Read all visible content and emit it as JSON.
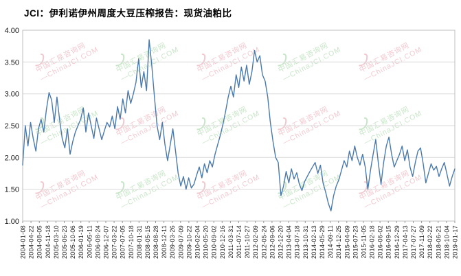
{
  "page": {
    "background": "#ffffff"
  },
  "title": "JCI：伊利诺伊州周度大豆压榨报告：现货油粕比",
  "watermark": {
    "line1": "中国汇易咨询网",
    "line2": "—ChinaJCI.COM",
    "pink_color": "#e9a4b0",
    "green_color": "#a3d4a3"
  },
  "chart_data": {
    "type": "line",
    "title": "JCI：伊利诺伊州周度大豆压榨报告：现货油粕比",
    "series_name": "现货油粕比",
    "line_color": "#4a79ad",
    "ylim": [
      1.0,
      4.0
    ],
    "y_ticks": [
      4.0,
      3.5,
      3.0,
      2.5,
      2.0,
      1.5,
      1.0
    ],
    "grid": "horizontal",
    "legend": "none",
    "x_tick_labels": [
      "2004-01-08",
      "2004-04-22",
      "2004-08-05",
      "2004-11-18",
      "2005-03-10",
      "2005-06-23",
      "2005-10-06",
      "2006-01-19",
      "2006-05-11",
      "2006-08-24",
      "2006-12-07",
      "2007-03-22",
      "2007-07-05",
      "2007-10-18",
      "2008-01-31",
      "2008-05-15",
      "2008-08-28",
      "2008-12-11",
      "2009-03-26",
      "2009-07-09",
      "2009-10-22",
      "2010-02-04",
      "2010-05-20",
      "2010-09-02",
      "2010-12-16",
      "2011-03-31",
      "2011-07-14",
      "2011-10-27",
      "2012-02-09",
      "2012-05-24",
      "2012-09-06",
      "2012-12-20",
      "2013-04-04",
      "2013-07-18",
      "2013-10-31",
      "2014-02-13",
      "2014-05-29",
      "2014-09-11",
      "2014-12-25",
      "2015-04-09",
      "2015-07-23",
      "2015-11-05",
      "2016-02-18",
      "2016-06-02",
      "2016-09-15",
      "2016-12-29",
      "2017-04-13",
      "2017-07-27",
      "2017-11-09",
      "2018-02-22",
      "2018-06-21",
      "2018-10-04",
      "2019-01-17"
    ],
    "values": [
      1.88,
      2.5,
      2.18,
      2.55,
      2.3,
      2.1,
      2.45,
      2.6,
      2.4,
      2.75,
      3.02,
      2.9,
      2.55,
      2.95,
      2.6,
      2.3,
      2.15,
      2.45,
      2.05,
      2.25,
      2.4,
      2.5,
      2.6,
      2.78,
      2.4,
      2.7,
      2.5,
      2.3,
      2.62,
      2.45,
      2.28,
      2.42,
      2.55,
      2.48,
      2.65,
      2.45,
      2.8,
      2.6,
      2.92,
      2.7,
      3.05,
      2.85,
      3.0,
      3.18,
      3.55,
      3.1,
      3.35,
      3.05,
      3.85,
      3.45,
      2.95,
      2.5,
      2.28,
      2.55,
      2.2,
      1.95,
      2.2,
      2.45,
      2.1,
      1.75,
      1.55,
      1.7,
      1.5,
      1.68,
      1.52,
      1.58,
      1.72,
      1.85,
      1.68,
      1.9,
      1.76,
      1.95,
      1.85,
      2.05,
      2.2,
      2.35,
      2.52,
      2.72,
      2.95,
      3.12,
      2.95,
      3.3,
      3.1,
      3.42,
      3.2,
      3.45,
      3.15,
      3.35,
      3.68,
      3.5,
      3.6,
      3.3,
      3.2,
      2.95,
      2.55,
      2.25,
      2.0,
      1.92,
      1.4,
      1.55,
      1.78,
      1.6,
      1.82,
      1.66,
      1.76,
      1.58,
      1.48,
      1.62,
      1.7,
      1.78,
      1.85,
      1.92,
      1.75,
      1.88,
      1.6,
      1.45,
      1.28,
      1.16,
      1.4,
      1.55,
      1.65,
      1.8,
      1.95,
      1.85,
      2.1,
      1.95,
      2.18,
      2.0,
      1.88,
      2.05,
      1.85,
      1.5,
      1.8,
      2.05,
      2.28,
      1.9,
      1.58,
      1.92,
      2.18,
      2.32,
      2.05,
      1.85,
      1.95,
      2.05,
      2.18,
      1.95,
      2.12,
      1.85,
      1.7,
      1.92,
      2.1,
      2.15,
      1.9,
      1.6,
      1.75,
      1.9,
      1.8,
      1.86,
      1.7,
      1.82,
      1.92,
      1.74,
      1.55,
      1.7,
      1.82
    ]
  }
}
